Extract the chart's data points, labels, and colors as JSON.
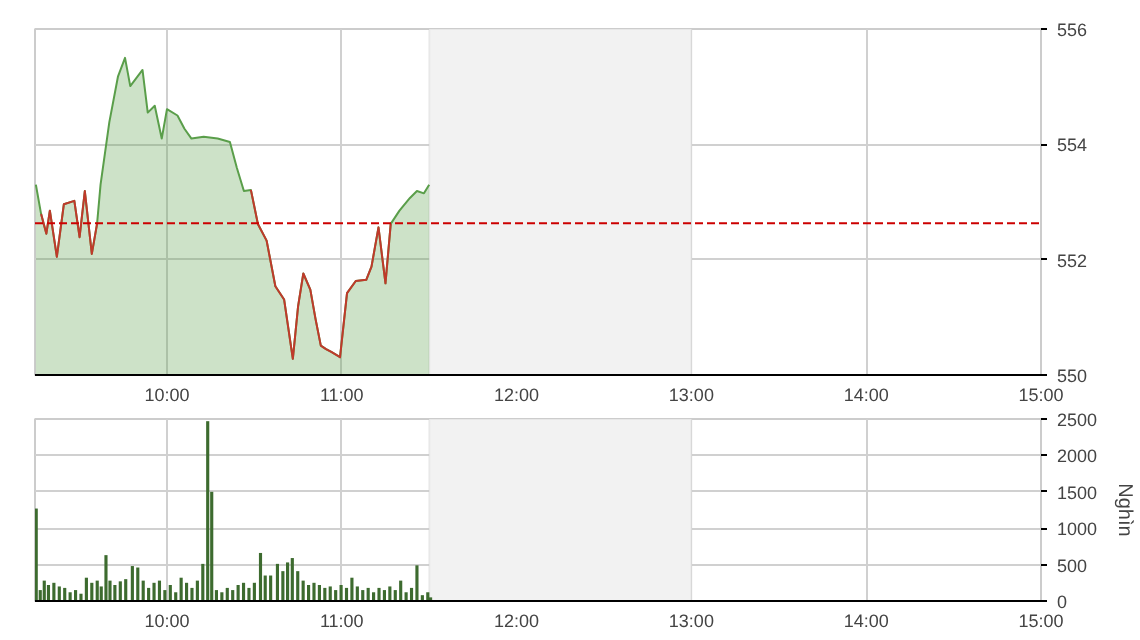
{
  "chart_data": [
    {
      "type": "area",
      "xlim": [
        9.245,
        15
      ],
      "xticks": [
        {
          "value": 10,
          "label": "10:00"
        },
        {
          "value": 11,
          "label": "11:00"
        },
        {
          "value": 12,
          "label": "12:00"
        },
        {
          "value": 13,
          "label": "13:00"
        },
        {
          "value": 14,
          "label": "14:00"
        },
        {
          "value": 15,
          "label": "15:00"
        }
      ],
      "ylim": [
        550,
        556
      ],
      "yticks": [
        550,
        552,
        554,
        556
      ],
      "grid": true,
      "series": [
        {
          "color": "#5a9e4a",
          "x": [
            9.25,
            9.28,
            9.31,
            9.33,
            9.37,
            9.41,
            9.47,
            9.5,
            9.53,
            9.57,
            9.6,
            9.62,
            9.67,
            9.72,
            9.76,
            9.79,
            9.86,
            9.89,
            9.93,
            9.97,
            10.0,
            10.06,
            10.1,
            10.14,
            10.21,
            10.29,
            10.36,
            10.4,
            10.44,
            10.48,
            10.52,
            10.57,
            10.62,
            10.67,
            10.72,
            10.75,
            10.78,
            10.82,
            10.85,
            10.88,
            10.91,
            10.94,
            10.99,
            11.03,
            11.08,
            11.14,
            11.17,
            11.21,
            11.25,
            11.28,
            11.33,
            11.39,
            11.43,
            11.47,
            11.5
          ],
          "values": [
            553.3,
            552.79,
            552.45,
            552.85,
            552.05,
            552.96,
            553.02,
            552.39,
            553.19,
            552.1,
            552.62,
            553.3,
            554.38,
            555.18,
            555.5,
            555.01,
            555.29,
            554.55,
            554.67,
            554.1,
            554.61,
            554.5,
            554.27,
            554.1,
            554.13,
            554.1,
            554.04,
            553.59,
            553.19,
            553.21,
            552.62,
            552.33,
            551.54,
            551.31,
            550.28,
            551.19,
            551.76,
            551.48,
            550.97,
            550.51,
            550.45,
            550.4,
            550.31,
            551.42,
            551.63,
            551.65,
            551.88,
            552.56,
            551.59,
            552.62,
            552.85,
            553.07,
            553.19,
            553.15,
            553.3
          ]
        },
        {
          "type": "line",
          "color": "#c0392b",
          "x": [
            9.28,
            9.31,
            9.33,
            9.37,
            9.41,
            9.47,
            9.5,
            9.53,
            9.57,
            9.6
          ],
          "values": [
            552.79,
            552.45,
            552.85,
            552.05,
            552.96,
            553.02,
            552.39,
            553.19,
            552.1,
            552.62
          ]
        },
        {
          "type": "line",
          "color": "#c0392b",
          "x": [
            10.48,
            10.52,
            10.57,
            10.62,
            10.67,
            10.72,
            10.75,
            10.78,
            10.82,
            10.85,
            10.88,
            10.91,
            10.94,
            10.99,
            11.03,
            11.08,
            11.14,
            11.17,
            11.21,
            11.25,
            11.28
          ],
          "values": [
            553.21,
            552.62,
            552.33,
            551.54,
            551.31,
            550.28,
            551.19,
            551.76,
            551.48,
            550.97,
            550.51,
            550.45,
            550.4,
            550.31,
            551.42,
            551.63,
            551.65,
            551.88,
            552.56,
            551.59,
            552.62
          ]
        }
      ],
      "ref_lines": [
        {
          "axis": "y",
          "value": 552.63,
          "color": "#cc0000",
          "line_style": "dashed"
        }
      ],
      "bands": [
        {
          "axis": "x",
          "from": 11.5,
          "to": 13,
          "color": "#f2f2f2"
        }
      ]
    },
    {
      "type": "bar",
      "ylabel": "Nghìn",
      "xlim": [
        9.245,
        15
      ],
      "xticks": [
        {
          "value": 10,
          "label": "10:00"
        },
        {
          "value": 11,
          "label": "11:00"
        },
        {
          "value": 12,
          "label": "12:00"
        },
        {
          "value": 13,
          "label": "13:00"
        },
        {
          "value": 14,
          "label": "14:00"
        },
        {
          "value": 15,
          "label": "15:00"
        }
      ],
      "ylim": [
        0,
        2500
      ],
      "yticks": [
        0,
        500,
        1000,
        1500,
        2000,
        2500
      ],
      "grid": true,
      "series": [
        {
          "color": "#3d6b2f",
          "x": [
            9.252,
            9.275,
            9.298,
            9.322,
            9.353,
            9.384,
            9.415,
            9.446,
            9.477,
            9.508,
            9.539,
            9.57,
            9.601,
            9.624,
            9.651,
            9.674,
            9.702,
            9.733,
            9.764,
            9.802,
            9.833,
            9.864,
            9.895,
            9.926,
            9.957,
            9.988,
            10.019,
            10.05,
            10.081,
            10.112,
            10.143,
            10.174,
            10.205,
            10.233,
            10.256,
            10.283,
            10.314,
            10.345,
            10.376,
            10.407,
            10.438,
            10.469,
            10.5,
            10.535,
            10.562,
            10.593,
            10.632,
            10.663,
            10.69,
            10.717,
            10.748,
            10.779,
            10.81,
            10.841,
            10.872,
            10.903,
            10.934,
            10.965,
            10.996,
            11.027,
            11.058,
            11.089,
            11.12,
            11.151,
            11.182,
            11.213,
            11.244,
            11.275,
            11.306,
            11.337,
            11.368,
            11.399,
            11.43,
            11.461,
            11.492,
            11.508
          ],
          "values": [
            1270,
            150,
            280,
            220,
            250,
            200,
            180,
            120,
            150,
            100,
            320,
            250,
            280,
            200,
            630,
            280,
            220,
            270,
            300,
            480,
            460,
            280,
            180,
            250,
            280,
            150,
            220,
            120,
            320,
            250,
            180,
            280,
            510,
            2470,
            1500,
            150,
            120,
            180,
            150,
            220,
            250,
            180,
            250,
            660,
            350,
            350,
            510,
            410,
            530,
            590,
            410,
            280,
            220,
            250,
            220,
            180,
            200,
            150,
            220,
            180,
            320,
            200,
            150,
            180,
            120,
            180,
            150,
            200,
            150,
            280,
            120,
            180,
            490,
            80,
            120,
            50
          ]
        }
      ],
      "bands": [
        {
          "axis": "x",
          "from": 11.5,
          "to": 13,
          "color": "#f2f2f2"
        }
      ]
    }
  ]
}
